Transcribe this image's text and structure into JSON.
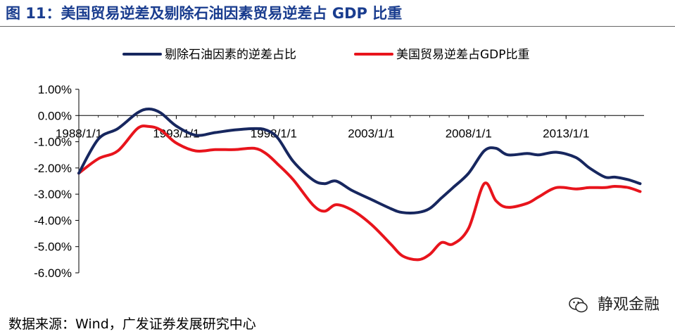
{
  "figure": {
    "title": "图 11：美国贸易逆差及剔除石油因素贸易逆差占 GDP 比重",
    "source": "数据来源：Wind，广发证券发展研究中心",
    "watermark": "静观金融"
  },
  "colors": {
    "title": "#1a3d8f",
    "series_navy": "#17275f",
    "series_red": "#e8141c"
  },
  "chart_data": {
    "type": "line",
    "title": "",
    "xlabel": "",
    "ylabel": "",
    "ylim": [
      -6.0,
      1.0
    ],
    "yticks": [
      "1.00%",
      "0.00%",
      "-1.00%",
      "-2.00%",
      "-3.00%",
      "-4.00%",
      "-5.00%",
      "-6.00%"
    ],
    "xticks": [
      "1988/1/1",
      "1993/1/1",
      "1998/1/1",
      "2003/1/1",
      "2008/1/1",
      "2013/1/1"
    ],
    "xlim": [
      "1988-01-01",
      "2017-01-01"
    ],
    "legend_position": "top",
    "grid": false,
    "series": [
      {
        "name": "剔除石油因素的逆差占比",
        "color": "#17275f",
        "x": [
          1988.0,
          1989.0,
          1990.0,
          1991.0,
          1991.6,
          1992.2,
          1993.0,
          1994.0,
          1995.0,
          1996.0,
          1997.0,
          1997.6,
          1998.2,
          1999.0,
          2000.0,
          2000.6,
          2001.2,
          2002.0,
          2003.0,
          2004.0,
          2004.6,
          2005.4,
          2006.0,
          2006.6,
          2007.2,
          2008.0,
          2008.8,
          2009.4,
          2010.0,
          2011.0,
          2011.6,
          2012.5,
          2013.5,
          2014.2,
          2015.0,
          2015.5,
          2016.2,
          2016.8
        ],
        "y": [
          -2.2,
          -0.9,
          -0.5,
          0.1,
          0.25,
          0.1,
          -0.4,
          -0.75,
          -0.65,
          -0.55,
          -0.5,
          -0.55,
          -0.85,
          -1.75,
          -2.45,
          -2.6,
          -2.5,
          -2.85,
          -3.2,
          -3.55,
          -3.7,
          -3.7,
          -3.55,
          -3.15,
          -2.75,
          -2.2,
          -1.35,
          -1.25,
          -1.5,
          -1.45,
          -1.5,
          -1.4,
          -1.6,
          -2.0,
          -2.35,
          -2.35,
          -2.45,
          -2.6
        ]
      },
      {
        "name": "美国贸易逆差占GDP比重",
        "color": "#e8141c",
        "x": [
          1988.0,
          1989.0,
          1990.0,
          1991.0,
          1991.6,
          1992.2,
          1993.0,
          1994.0,
          1995.0,
          1996.0,
          1997.0,
          1997.6,
          1998.2,
          1999.0,
          2000.0,
          2000.6,
          2001.2,
          2002.0,
          2003.0,
          2004.0,
          2004.6,
          2005.4,
          2006.0,
          2006.6,
          2007.2,
          2008.0,
          2008.8,
          2009.4,
          2010.0,
          2011.0,
          2011.6,
          2012.5,
          2013.5,
          2014.2,
          2015.0,
          2015.5,
          2016.2,
          2016.8
        ],
        "y": [
          -2.2,
          -1.65,
          -1.35,
          -0.5,
          -0.42,
          -0.55,
          -1.05,
          -1.35,
          -1.3,
          -1.3,
          -1.25,
          -1.45,
          -1.85,
          -2.45,
          -3.4,
          -3.65,
          -3.4,
          -3.6,
          -4.15,
          -4.9,
          -5.35,
          -5.5,
          -5.3,
          -4.85,
          -4.9,
          -4.3,
          -2.6,
          -3.25,
          -3.5,
          -3.35,
          -3.1,
          -2.75,
          -2.8,
          -2.75,
          -2.75,
          -2.7,
          -2.75,
          -2.9
        ]
      }
    ]
  }
}
